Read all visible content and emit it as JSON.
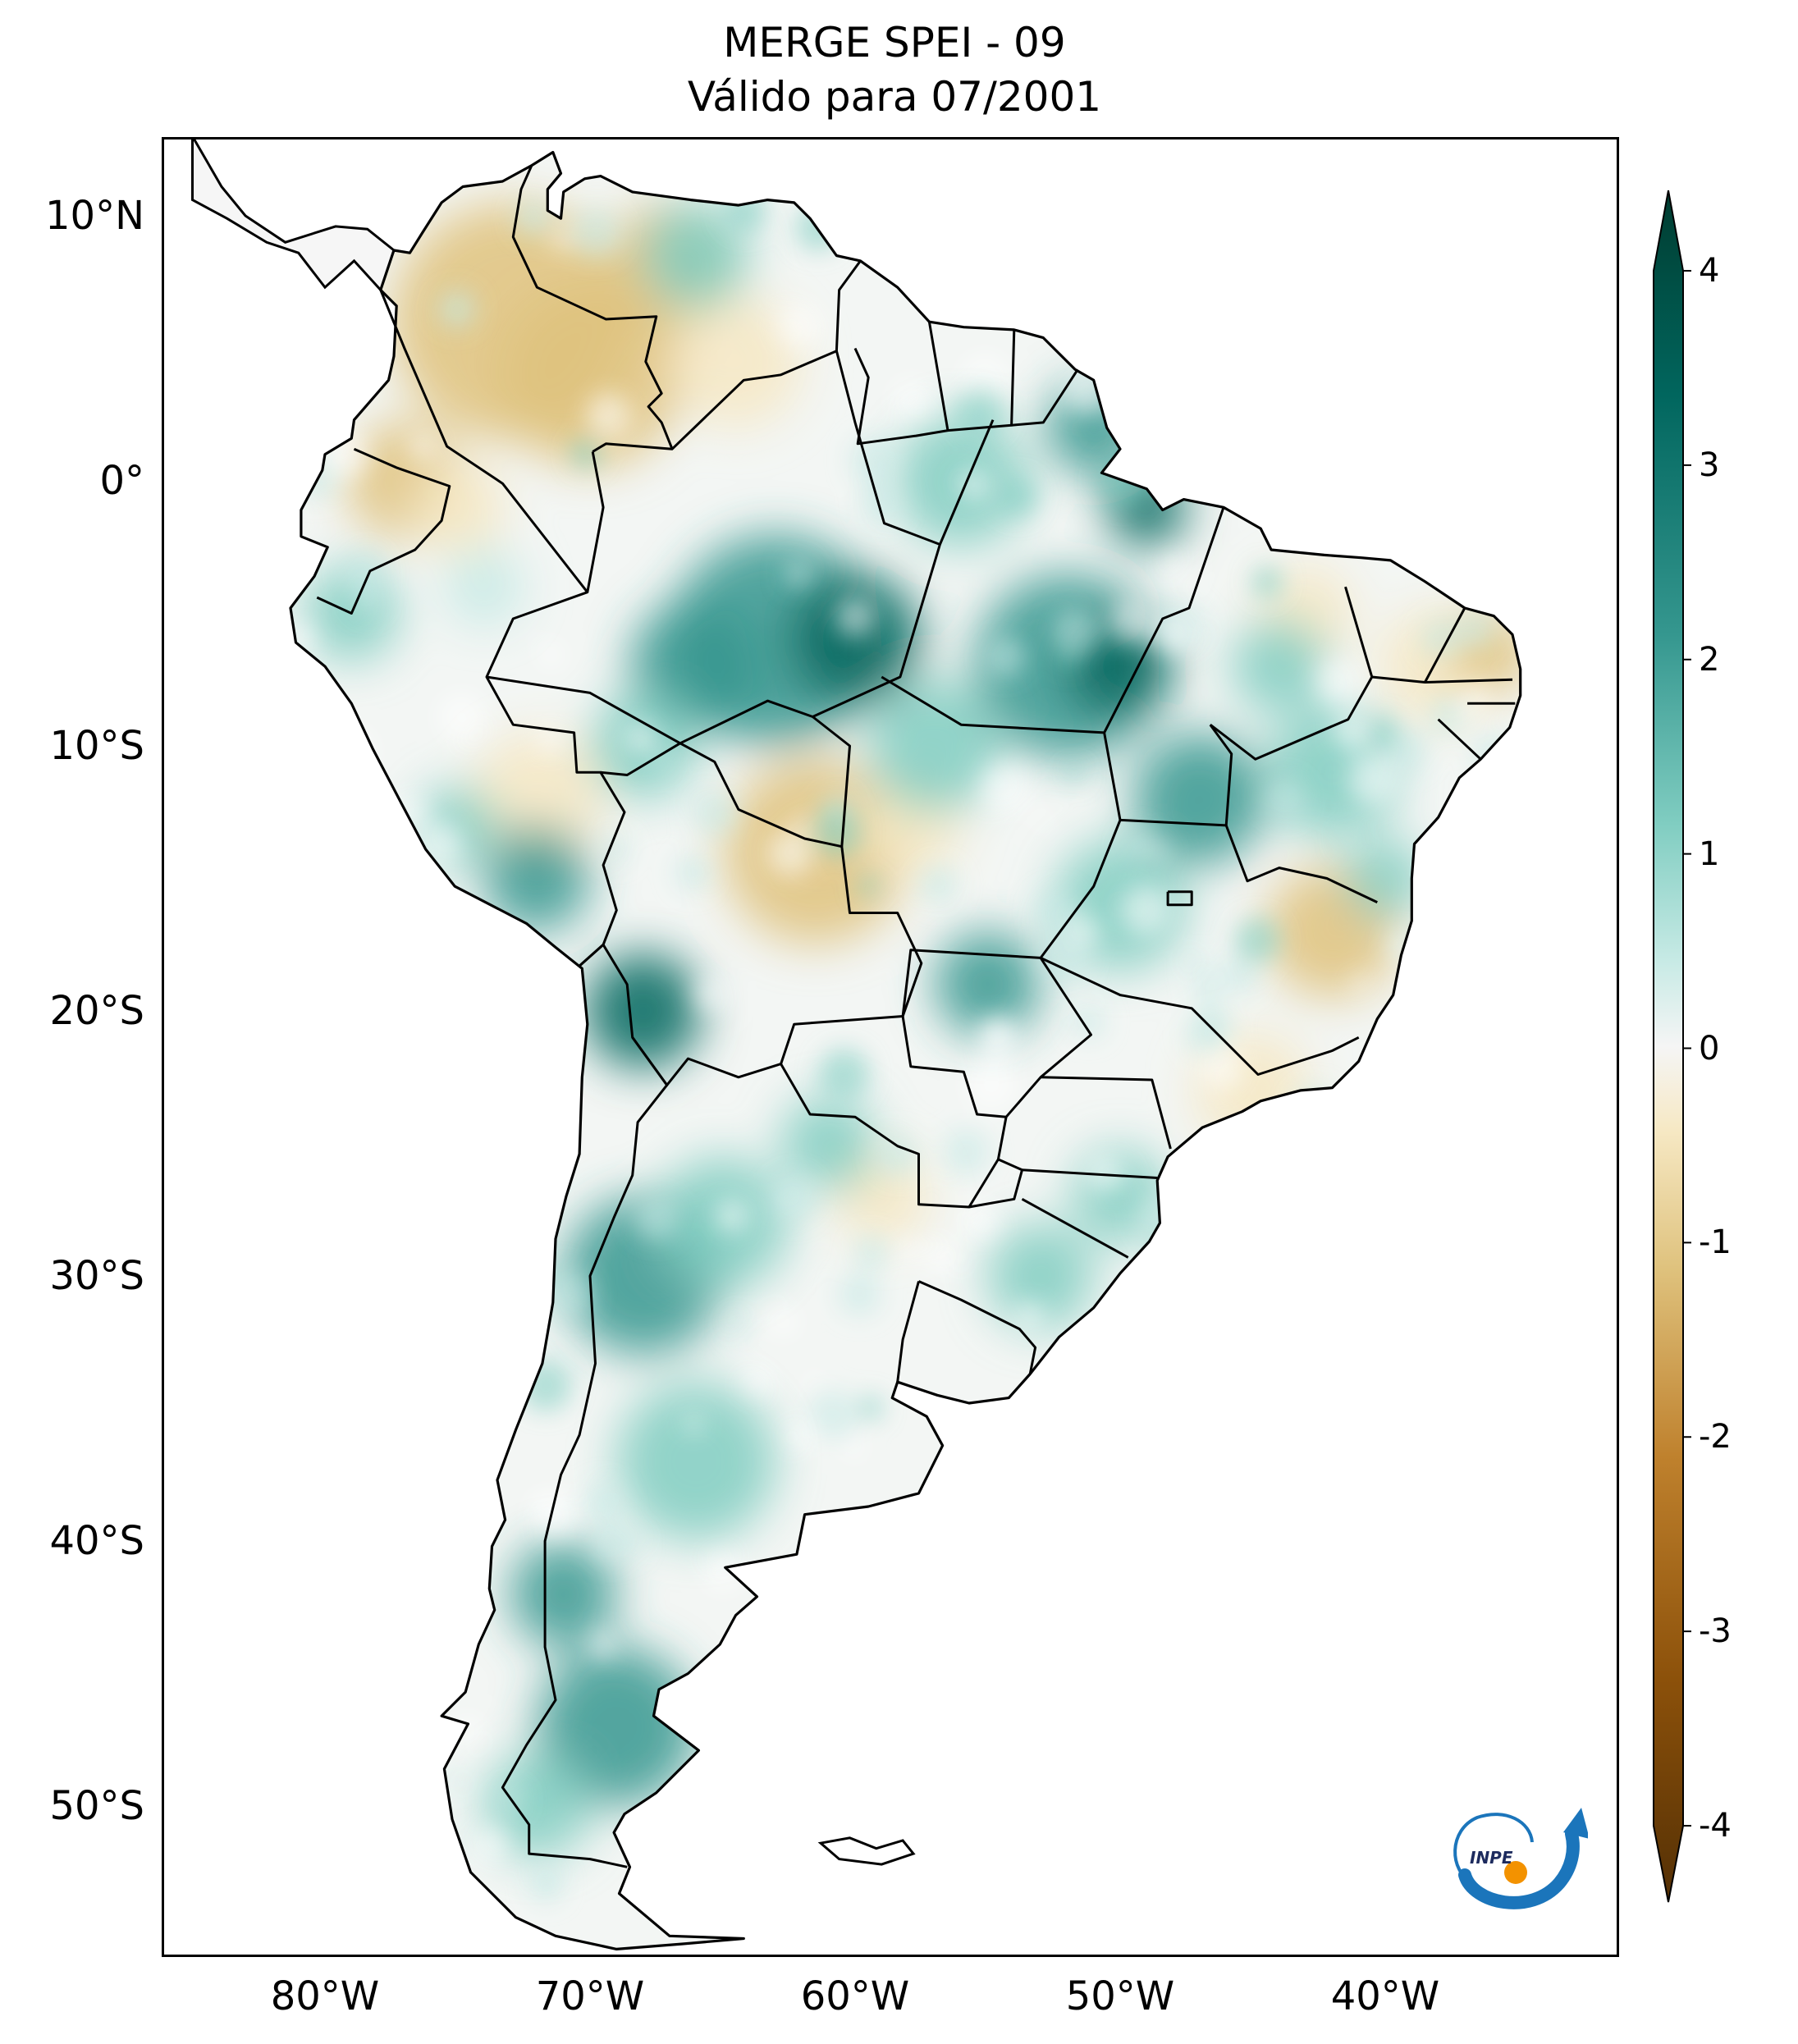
{
  "title": {
    "line1": "MERGE   SPEI - 09",
    "line2": "Válido para 07/2001"
  },
  "map": {
    "projection": "PlateCarree",
    "lon_range": [
      -85,
      -30
    ],
    "lat_range": [
      -56,
      13
    ],
    "lat_ticks": [
      {
        "value": 10,
        "label": "10°N"
      },
      {
        "value": 0,
        "label": "0°"
      },
      {
        "value": -10,
        "label": "10°S"
      },
      {
        "value": -20,
        "label": "20°S"
      },
      {
        "value": -30,
        "label": "30°S"
      },
      {
        "value": -40,
        "label": "40°S"
      },
      {
        "value": -50,
        "label": "50°S"
      }
    ],
    "lon_ticks": [
      {
        "value": -80,
        "label": "80°W"
      },
      {
        "value": -70,
        "label": "70°W"
      },
      {
        "value": -60,
        "label": "60°W"
      },
      {
        "value": -50,
        "label": "50°W"
      },
      {
        "value": -40,
        "label": "40°W"
      }
    ]
  },
  "colorbar": {
    "min": -4,
    "max": 4,
    "extend": "both",
    "ticks": [
      {
        "value": 4,
        "label": "4"
      },
      {
        "value": 3,
        "label": "3"
      },
      {
        "value": 2,
        "label": "2"
      },
      {
        "value": 1,
        "label": "1"
      },
      {
        "value": 0,
        "label": "0"
      },
      {
        "value": -1,
        "label": "-1"
      },
      {
        "value": -2,
        "label": "-2"
      },
      {
        "value": -3,
        "label": "-3"
      },
      {
        "value": -4,
        "label": "-4"
      }
    ],
    "colors": {
      "dry_extreme": "#543005",
      "dry_strong": "#8c510a",
      "dry_moderate": "#bf812d",
      "dry_mild": "#dfc27d",
      "dry_light": "#f6e8c3",
      "neutral": "#f5f5f5",
      "wet_light": "#c7eae5",
      "wet_mild": "#80cdc1",
      "wet_moderate": "#35978f",
      "wet_strong": "#01665e",
      "wet_extreme": "#003c30"
    }
  },
  "logo": {
    "text": "INPE"
  }
}
